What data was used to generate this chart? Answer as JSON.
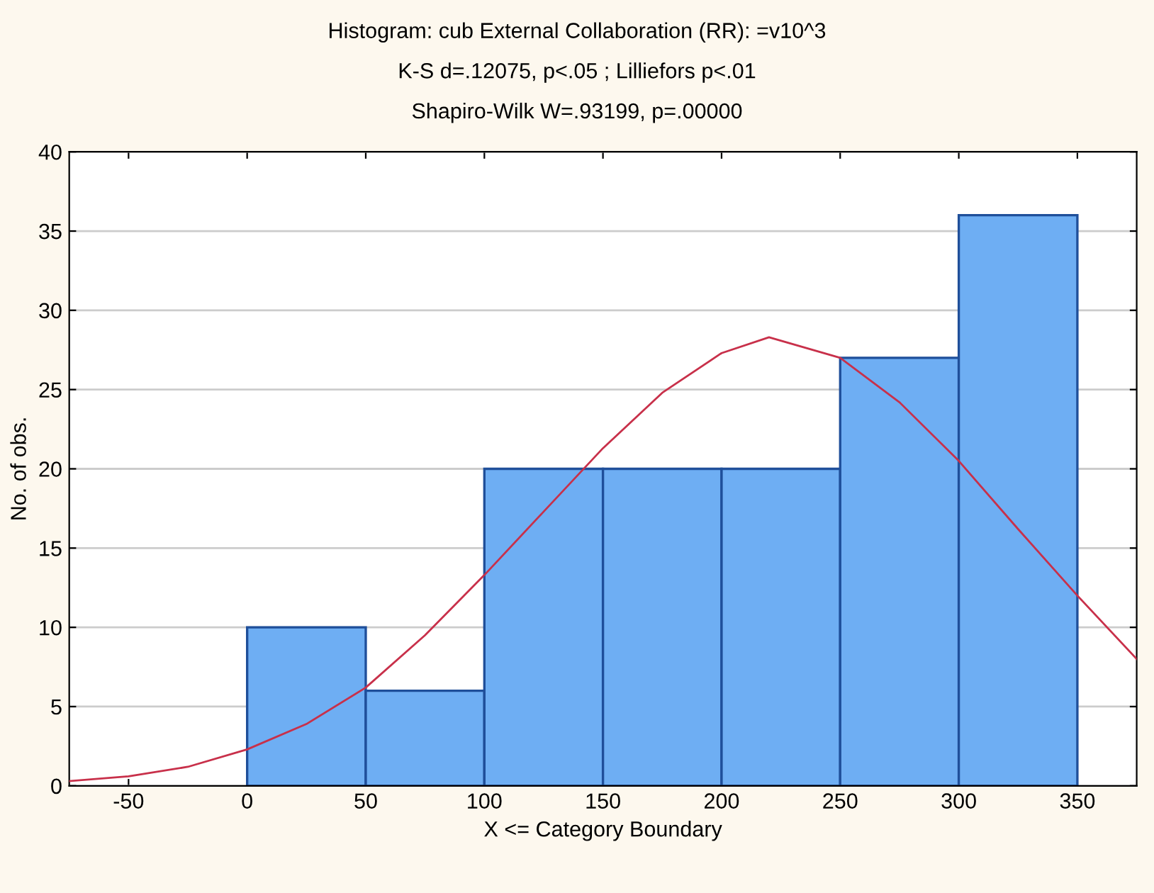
{
  "chart_data": {
    "type": "histogram",
    "title": "Histogram: cub External Collaboration (RR): =v10^3",
    "subtitle": "K-S d=.12075, p<.05 ; Lilliefors p<.01",
    "annotations": [
      "Shapiro-Wilk W=.93199, p=.00000"
    ],
    "xlabel": "X <= Category Boundary",
    "ylabel": "No. of obs.",
    "bins": [
      0,
      50,
      100,
      150,
      200,
      250,
      300,
      350
    ],
    "values": [
      10,
      6,
      20,
      20,
      20,
      27,
      36
    ],
    "color": "#6eaef3",
    "series": [
      {
        "type": "line",
        "color": "#c8304a",
        "x": [
          -75,
          -50,
          -25,
          0,
          25,
          50,
          75,
          100,
          125,
          150,
          175,
          200,
          220,
          250,
          275,
          300,
          325,
          350,
          375
        ],
        "values": [
          0.3,
          0.6,
          1.2,
          2.3,
          3.9,
          6.2,
          9.5,
          13.3,
          17.3,
          21.3,
          24.8,
          27.3,
          28.3,
          27.0,
          24.2,
          20.5,
          16.2,
          12.0,
          8.0
        ]
      }
    ],
    "xlim": [
      -75,
      375
    ],
    "xticks": [
      -50,
      0,
      50,
      100,
      150,
      200,
      250,
      300,
      350
    ],
    "ylim": [
      0,
      40
    ],
    "yticks": [
      0,
      5,
      10,
      15,
      20,
      25,
      30,
      35,
      40
    ],
    "grid": "y"
  }
}
